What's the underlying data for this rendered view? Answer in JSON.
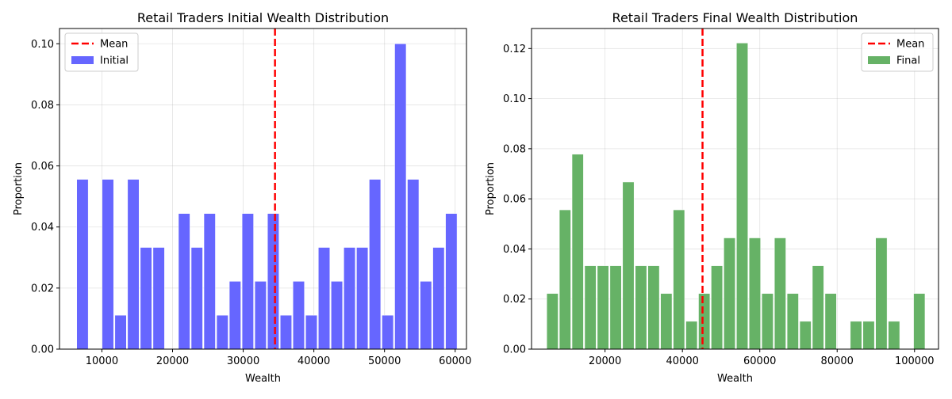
{
  "chart_data": [
    {
      "type": "bar",
      "title": "Retail Traders Initial Wealth Distribution",
      "xlabel": "Wealth",
      "ylabel": "Proportion",
      "xlim": [
        4000,
        61600
      ],
      "ylim": [
        0,
        0.105
      ],
      "xticks": [
        10000,
        20000,
        30000,
        40000,
        50000,
        60000
      ],
      "yticks": [
        "0.00",
        "0.02",
        "0.04",
        "0.06",
        "0.08",
        "0.10"
      ],
      "grid": true,
      "legend_position": "top-left",
      "mean": 34500,
      "legend": [
        {
          "label": "Mean",
          "kind": "line",
          "color": "#ff0000"
        },
        {
          "label": "Initial",
          "kind": "patch",
          "color": "#6666ff"
        }
      ],
      "color": "#6666ff",
      "bin_width": 1800,
      "x": [
        7250,
        9050,
        10850,
        12650,
        14450,
        16250,
        18050,
        19850,
        21650,
        23450,
        25250,
        27050,
        28850,
        30650,
        32450,
        34250,
        36050,
        37850,
        39650,
        41450,
        43250,
        45050,
        46850,
        48650,
        50450,
        52250,
        54050,
        55850,
        57650,
        59450
      ],
      "values": [
        0.0556,
        0,
        0.0556,
        0.0111,
        0.0556,
        0.0333,
        0.0333,
        0,
        0.0444,
        0.0333,
        0.0444,
        0.0111,
        0.0222,
        0.0444,
        0.0222,
        0.0444,
        0.0111,
        0.0222,
        0.0111,
        0.0333,
        0.0222,
        0.0333,
        0.0333,
        0.0556,
        0.0111,
        0.1,
        0.0556,
        0.0222,
        0.0333,
        0.0444
      ]
    },
    {
      "type": "bar",
      "title": "Retail Traders Final Wealth Distribution",
      "xlabel": "Wealth",
      "ylabel": "Proportion",
      "xlim": [
        1000,
        106200
      ],
      "ylim": [
        0,
        0.128
      ],
      "xticks": [
        20000,
        40000,
        60000,
        80000,
        100000
      ],
      "yticks": [
        "0.00",
        "0.02",
        "0.04",
        "0.06",
        "0.08",
        "0.10",
        "0.12"
      ],
      "grid": true,
      "legend_position": "top-right",
      "mean": 45200,
      "legend": [
        {
          "label": "Mean",
          "kind": "line",
          "color": "#ff0000"
        },
        {
          "label": "Final",
          "kind": "patch",
          "color": "#66b266"
        }
      ],
      "color": "#66b266",
      "bin_width": 3270,
      "x": [
        6400,
        9670,
        12940,
        16210,
        19480,
        22750,
        26020,
        29290,
        32560,
        35830,
        39100,
        42370,
        45640,
        48910,
        52180,
        55450,
        58720,
        61990,
        65260,
        68530,
        71800,
        75070,
        78340,
        81610,
        84880,
        88150,
        91420,
        94690,
        97960,
        101230
      ],
      "values": [
        0.0222,
        0.0556,
        0.0778,
        0.0333,
        0.0333,
        0.0333,
        0.0667,
        0.0333,
        0.0333,
        0.0222,
        0.0556,
        0.0111,
        0.0222,
        0.0333,
        0.0444,
        0.1222,
        0.0444,
        0.0222,
        0.0444,
        0.0222,
        0.0111,
        0.0333,
        0.0222,
        0,
        0.0111,
        0.0111,
        0.0444,
        0.0111,
        0,
        0.0222
      ]
    }
  ]
}
